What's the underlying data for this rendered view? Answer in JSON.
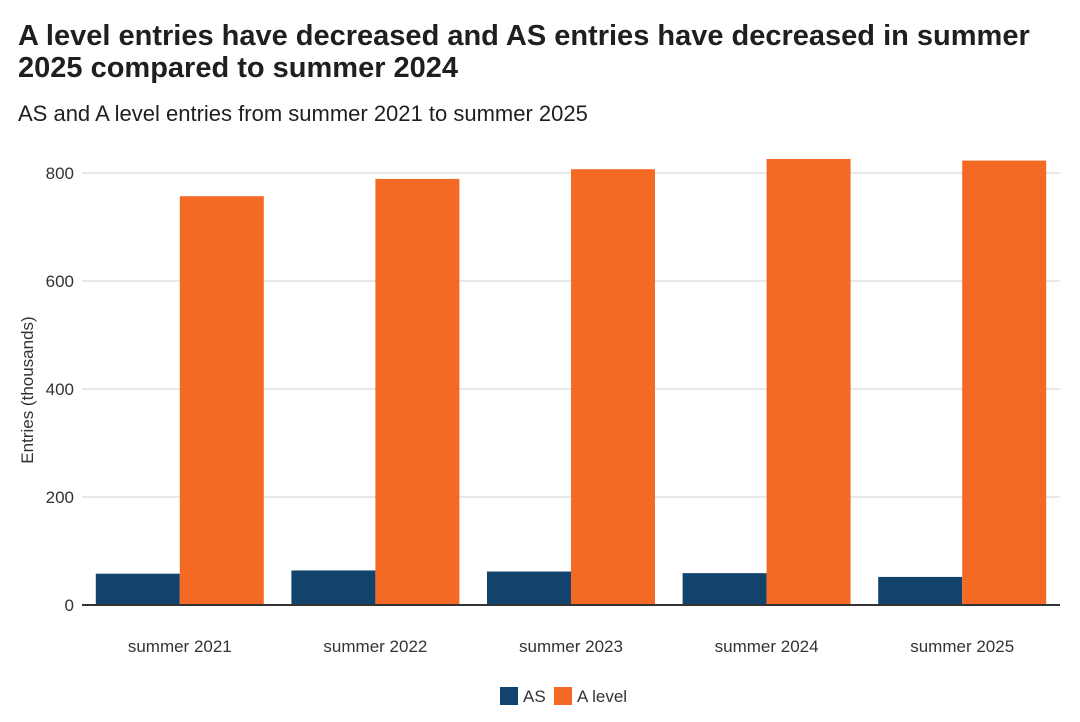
{
  "header": {
    "title": "A level entries have decreased and AS entries have decreased in summer 2025 compared to summer 2024",
    "subtitle": "AS and A level entries from summer 2021 to summer 2025"
  },
  "chart_data": {
    "type": "bar",
    "categories": [
      "summer 2021",
      "summer 2022",
      "summer 2023",
      "summer 2024",
      "summer 2025"
    ],
    "series": [
      {
        "name": "AS",
        "color": "#12436d",
        "values": [
          58,
          64,
          62,
          59,
          52
        ]
      },
      {
        "name": "A level",
        "color": "#f46a25",
        "values": [
          757,
          789,
          807,
          826,
          823
        ]
      }
    ],
    "ylabel": "Entries (thousands)",
    "xlabel": "",
    "ylim": [
      0,
      800
    ],
    "yticks": [
      0,
      200,
      400,
      600,
      800
    ],
    "grid": true,
    "legend": "bottom-center"
  }
}
